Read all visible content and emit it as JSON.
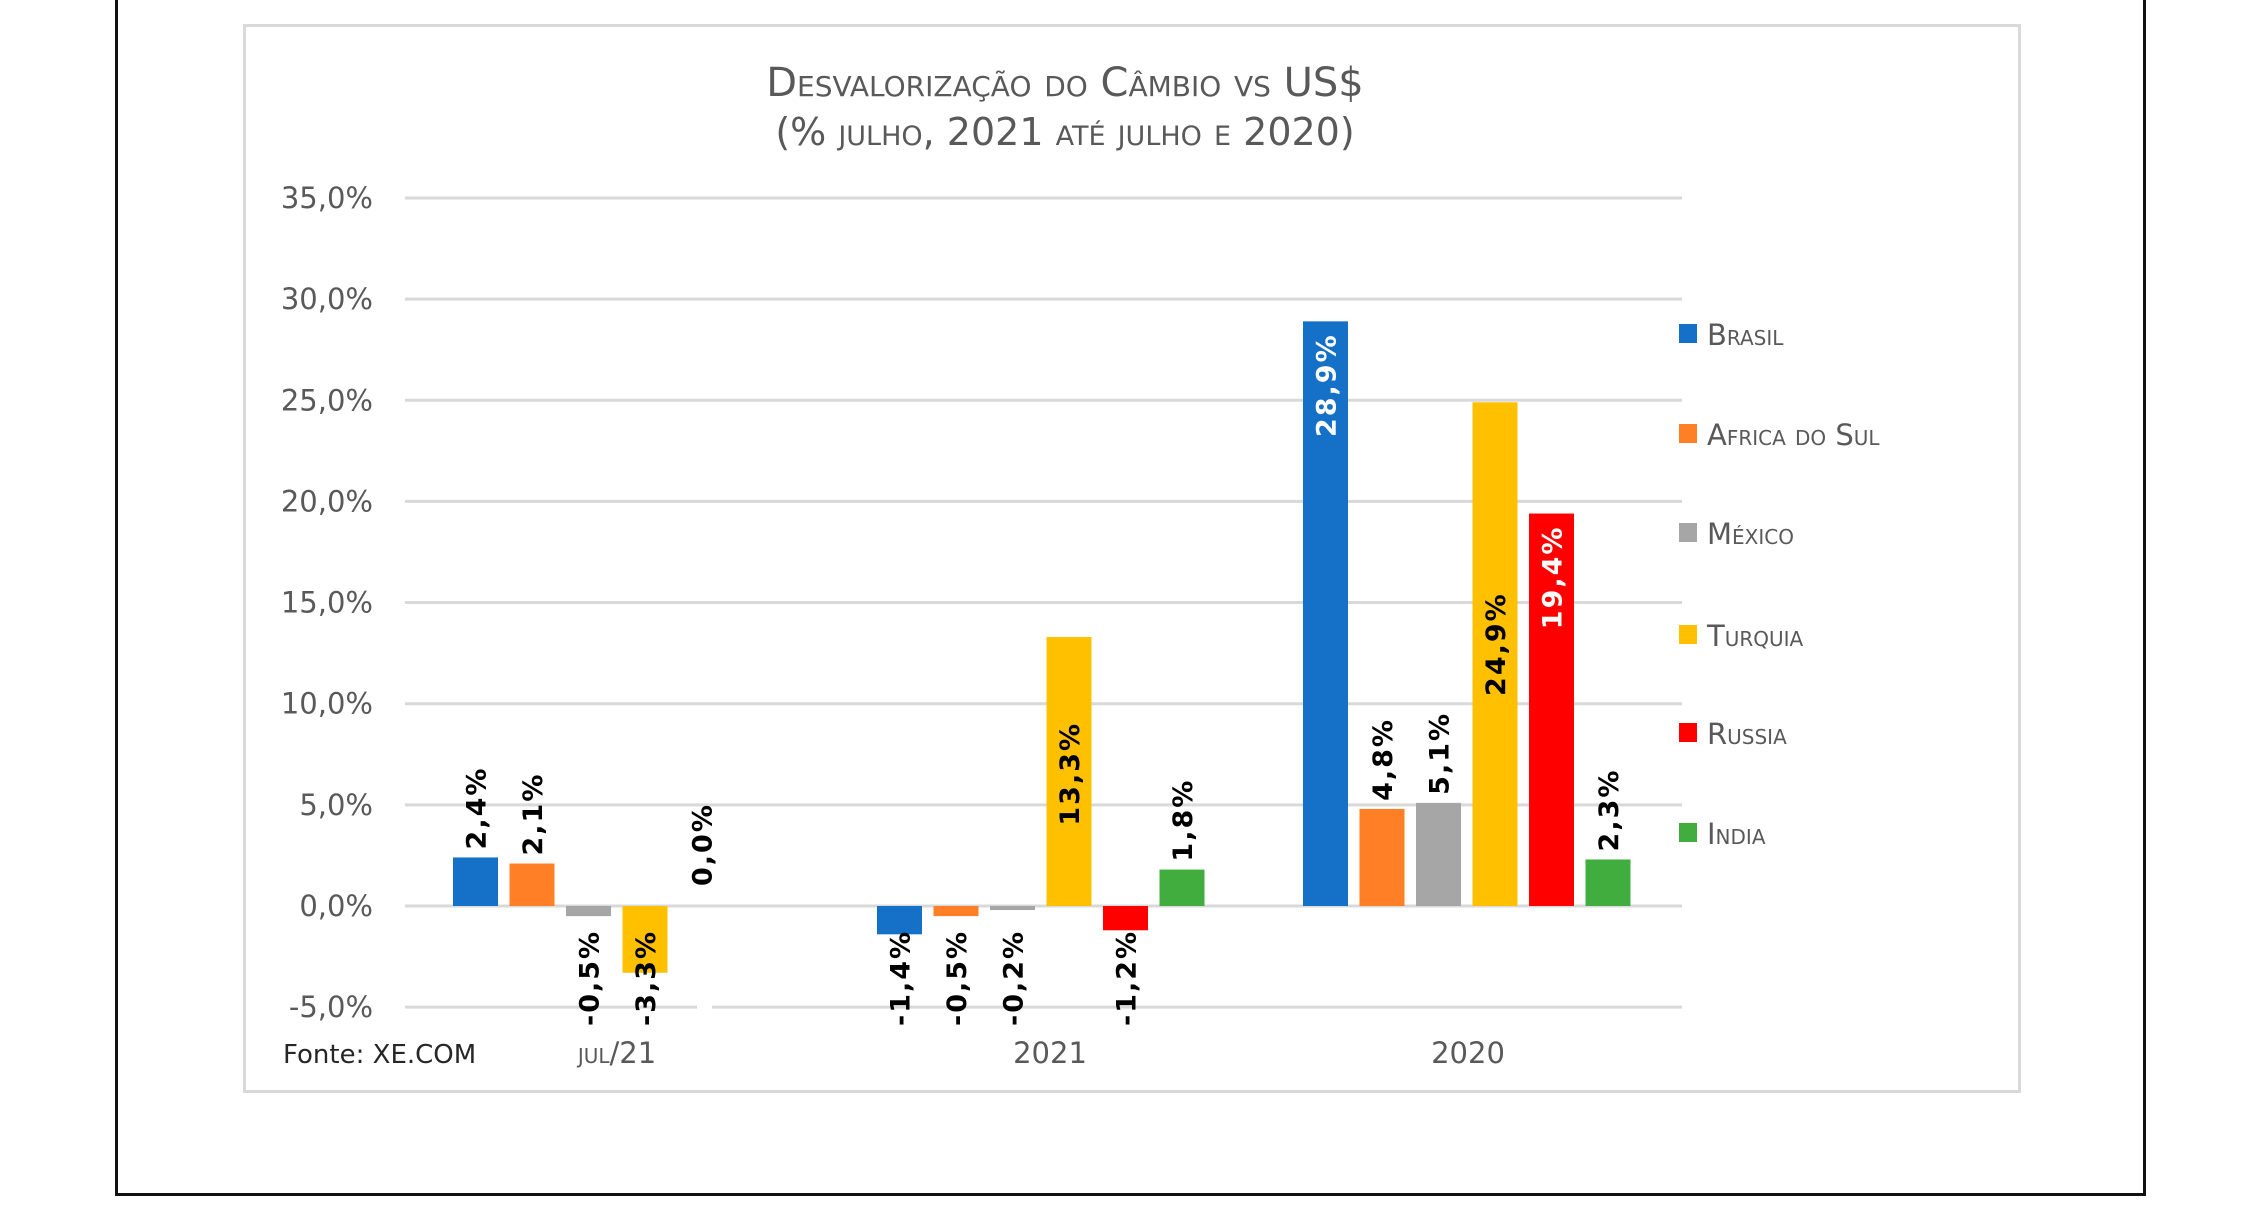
{
  "chart_data": {
    "type": "bar",
    "title": "Desvalorização do Câmbio vs US$",
    "subtitle": "(% julho, 2021 até julho e 2020)",
    "xlabel": "",
    "ylabel": "",
    "categories": [
      "jul/21",
      "2021",
      "2020"
    ],
    "series": [
      {
        "name": "Brasil",
        "color": "#1570C8",
        "values": [
          2.4,
          -1.4,
          28.9
        ],
        "labels": [
          "2,4%",
          "-1,4%",
          "28,9%"
        ]
      },
      {
        "name": "Africa do Sul",
        "color": "#FF7F27",
        "values": [
          2.1,
          -0.5,
          4.8
        ],
        "labels": [
          "2,1%",
          "-0,5%",
          "4,8%"
        ]
      },
      {
        "name": "México",
        "color": "#A6A6A6",
        "values": [
          -0.5,
          -0.2,
          5.1
        ],
        "labels": [
          "-0,5%",
          "-0,2%",
          "5,1%"
        ]
      },
      {
        "name": "Turquia",
        "color": "#FFC000",
        "values": [
          -3.3,
          13.3,
          24.9
        ],
        "labels": [
          "-3,3%",
          "13,3%",
          "24,9%"
        ]
      },
      {
        "name": "Russia",
        "color": "#FF0000",
        "values": [
          0.0,
          -1.2,
          19.4
        ],
        "labels": [
          "0,0%",
          "-1,2%",
          "19,4%"
        ]
      },
      {
        "name": "India",
        "color": "#41AD3E",
        "values": [
          null,
          1.8,
          2.3
        ],
        "labels": [
          null,
          "1,8%",
          "2,3%"
        ]
      }
    ],
    "ylim": [
      -5,
      35
    ],
    "yticks": [
      35,
      30,
      25,
      20,
      15,
      10,
      5,
      0,
      -5
    ],
    "ytick_labels": [
      "35,0%",
      "30,0%",
      "25,0%",
      "20,0%",
      "15,0%",
      "10,0%",
      "5,0%",
      "0,0%",
      "-5,0%"
    ],
    "grid": true,
    "legend_position": "right",
    "source": "Fonte: XE.COM"
  }
}
